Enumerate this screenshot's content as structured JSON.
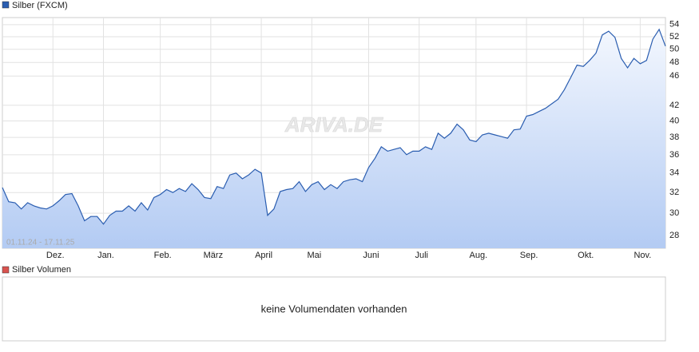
{
  "chart_data": {
    "type": "line",
    "log_scale": true,
    "grid": true,
    "subtitle": "01.11.24 - 17.11.25",
    "watermark": "ARIVA.DE",
    "categories": [
      null,
      null,
      null,
      null,
      null,
      null,
      null,
      null,
      "Dez.",
      null,
      null,
      null,
      null,
      null,
      null,
      null,
      "Jan.",
      null,
      null,
      null,
      null,
      null,
      null,
      null,
      null,
      "Feb.",
      null,
      null,
      null,
      null,
      null,
      null,
      null,
      "März",
      null,
      null,
      null,
      null,
      null,
      null,
      null,
      "April",
      null,
      null,
      null,
      null,
      null,
      null,
      null,
      "Mai",
      null,
      null,
      null,
      null,
      null,
      null,
      null,
      null,
      "Juni",
      null,
      null,
      null,
      null,
      null,
      null,
      null,
      "Juli",
      null,
      null,
      null,
      null,
      null,
      null,
      null,
      null,
      "Aug.",
      null,
      null,
      null,
      null,
      null,
      null,
      null,
      "Sep.",
      null,
      null,
      null,
      null,
      null,
      null,
      null,
      null,
      "Okt.",
      null,
      null,
      null,
      null,
      null,
      null,
      null,
      null,
      "Nov.",
      null,
      null,
      null,
      null
    ],
    "series": [
      {
        "name": "Silber (FXCM)",
        "color": "#2a5db0",
        "values": [
          32.5,
          31.1,
          31.0,
          30.4,
          31.0,
          30.7,
          30.5,
          30.4,
          30.7,
          31.2,
          31.8,
          31.9,
          30.7,
          29.3,
          29.7,
          29.7,
          29.0,
          29.8,
          30.2,
          30.2,
          30.7,
          30.2,
          31.0,
          30.3,
          31.5,
          31.8,
          32.3,
          32.0,
          32.4,
          32.1,
          32.9,
          32.3,
          31.5,
          31.4,
          32.6,
          32.4,
          33.8,
          34.0,
          33.4,
          33.8,
          34.4,
          34.0,
          29.8,
          30.4,
          32.1,
          32.3,
          32.4,
          33.1,
          32.1,
          32.8,
          33.1,
          32.3,
          32.8,
          32.4,
          33.1,
          33.3,
          33.4,
          33.1,
          34.6,
          35.6,
          36.9,
          36.4,
          36.6,
          36.8,
          36.0,
          36.4,
          36.4,
          36.9,
          36.6,
          38.5,
          37.9,
          38.5,
          39.6,
          38.9,
          37.7,
          37.5,
          38.3,
          38.5,
          38.3,
          38.1,
          37.9,
          38.9,
          39.0,
          40.6,
          40.8,
          41.2,
          41.6,
          42.2,
          42.8,
          44.1,
          45.8,
          47.6,
          47.4,
          48.3,
          49.4,
          52.3,
          52.9,
          51.9,
          48.6,
          47.2,
          48.6,
          47.8,
          48.3,
          51.6,
          53.2,
          50.5
        ]
      }
    ],
    "ylim": [
      26.9,
      55.2
    ],
    "yticks": [
      28,
      30,
      32,
      34,
      36,
      38,
      40,
      42,
      46,
      48,
      50,
      52,
      54
    ]
  },
  "volume_panel": {
    "title": "Silber Volumen",
    "color": "#d9534f",
    "message": "keine Volumendaten vorhanden"
  }
}
